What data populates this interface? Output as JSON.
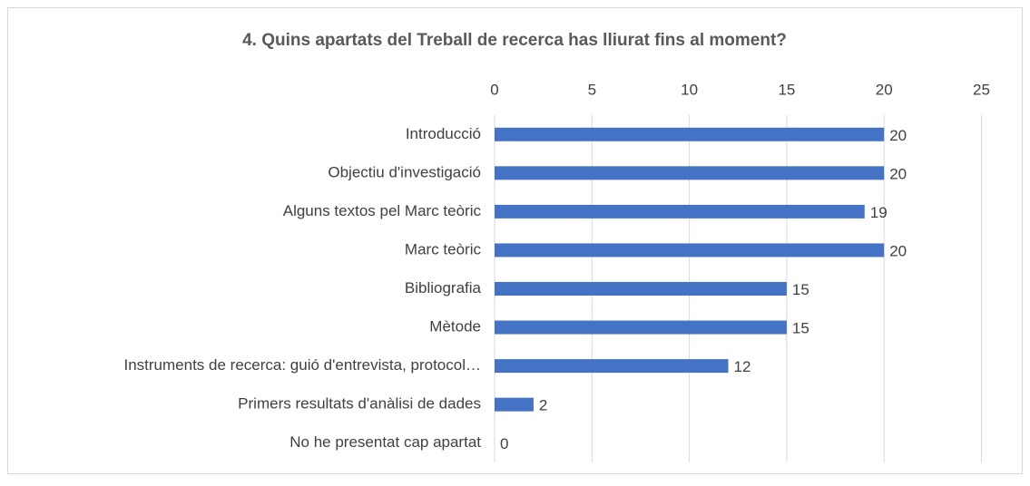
{
  "chart_data": {
    "type": "bar",
    "orientation": "horizontal",
    "title": "4. Quins apartats del Treball de recerca has lliurat fins al moment?",
    "categories": [
      "Introducció",
      "Objectiu d'investigació",
      "Alguns textos pel Marc teòric",
      "Marc teòric",
      "Bibliografia",
      "Mètode",
      "Instruments de recerca: guió d'entrevista, protocol…",
      "Primers resultats d'anàlisi de dades",
      "No he presentat cap apartat"
    ],
    "values": [
      20,
      20,
      19,
      20,
      15,
      15,
      12,
      2,
      0
    ],
    "color": "#4472c4",
    "xlim": [
      0,
      25
    ],
    "xticks": [
      0,
      5,
      10,
      15,
      20,
      25
    ],
    "grid": true
  }
}
